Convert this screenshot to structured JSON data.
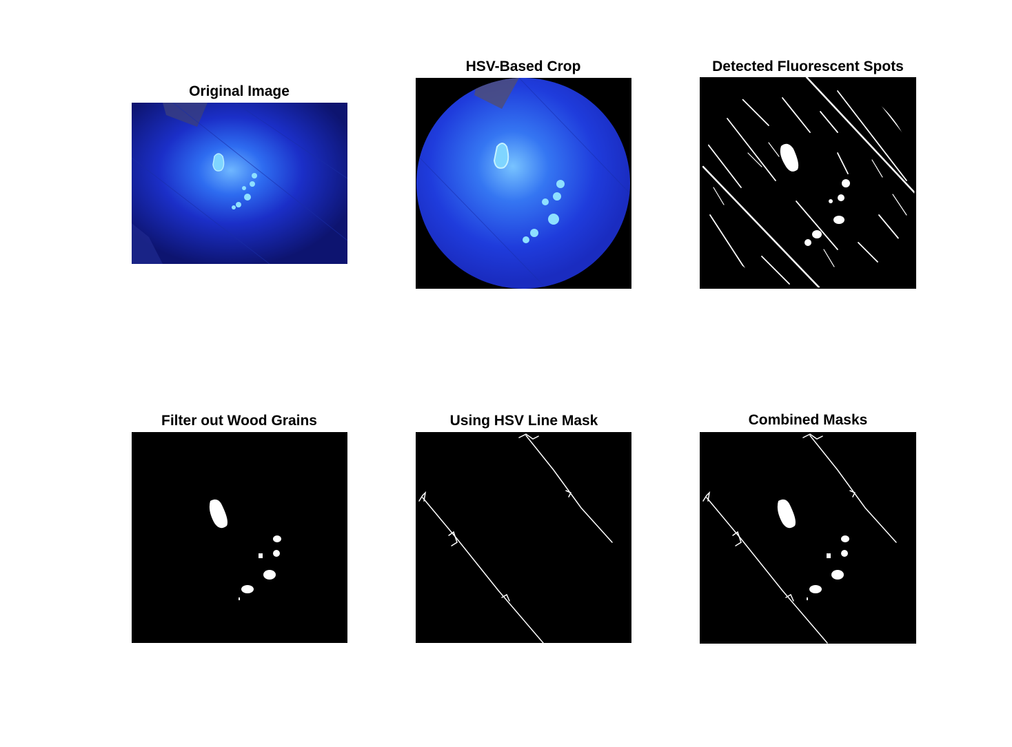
{
  "figure": {
    "panels": [
      {
        "title": "Original Image"
      },
      {
        "title": "HSV-Based Crop"
      },
      {
        "title": "Detected Fluorescent Spots"
      },
      {
        "title": "Filter out Wood Grains"
      },
      {
        "title": "Using HSV Line Mask"
      },
      {
        "title": "Combined Masks"
      }
    ]
  }
}
